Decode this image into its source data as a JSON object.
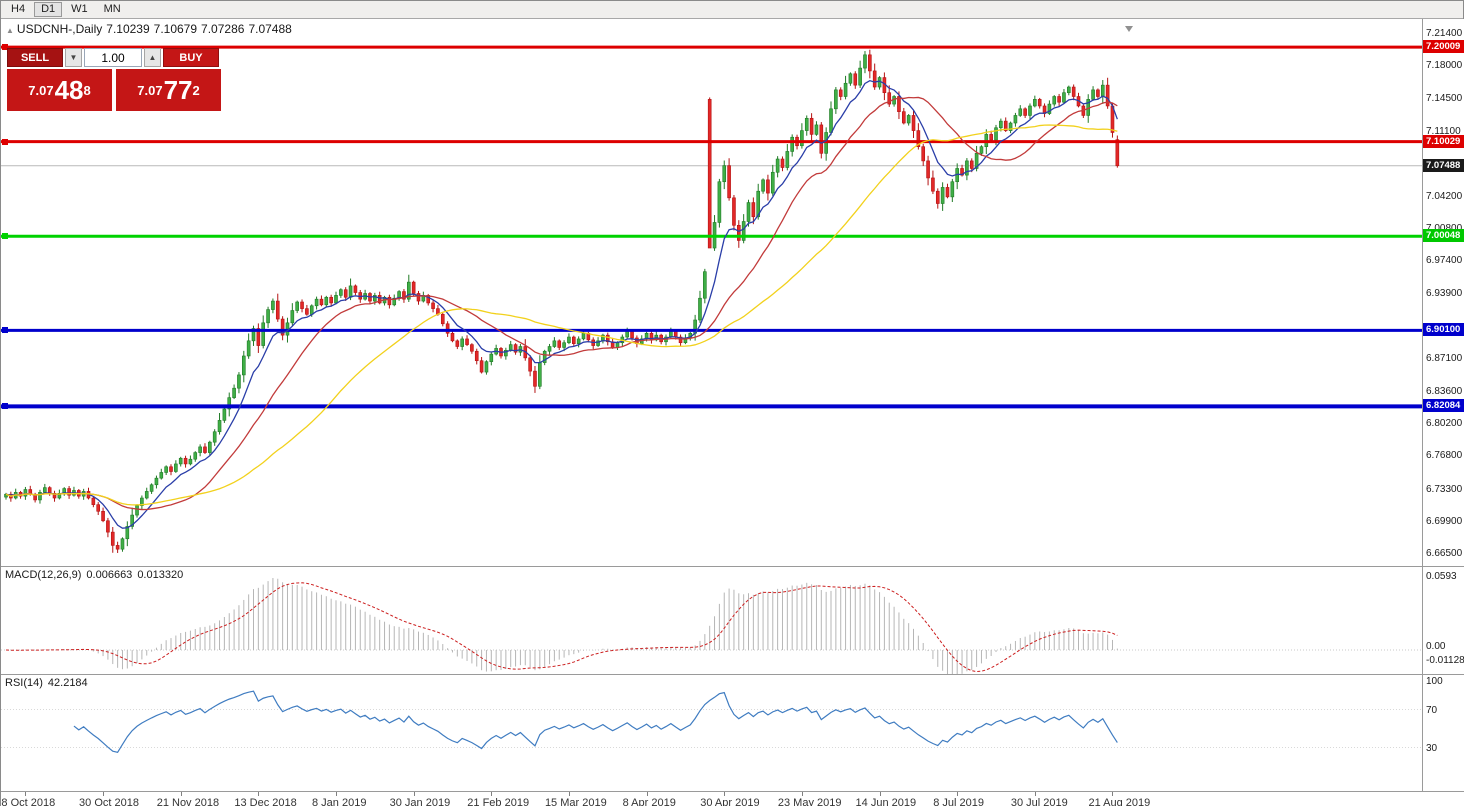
{
  "toolbar": {
    "timeframes": [
      "H4",
      "D1",
      "W1",
      "MN"
    ],
    "active": "D1"
  },
  "chart_title": {
    "symbol_period": "USDCNH-,Daily",
    "open": "7.10239",
    "high": "7.10679",
    "low": "7.07286",
    "close": "7.07488"
  },
  "trade_panel": {
    "sell_label": "SELL",
    "buy_label": "BUY",
    "volume": "1.00",
    "sell_price": {
      "main": "7.07",
      "big": "48",
      "sup": "8"
    },
    "buy_price": {
      "main": "7.07",
      "big": "77",
      "sup": "2"
    }
  },
  "chart_data": {
    "type": "candlestick",
    "symbol": "USDCNH",
    "period": "Daily",
    "quote": {
      "open": 7.10239,
      "high": 7.10679,
      "low": 7.07286,
      "close": 7.07488
    },
    "price_axis": {
      "min": 6.665,
      "max": 7.214
    },
    "price_axis_ticks": [
      "7.21400",
      "7.18000",
      "7.14500",
      "7.11100",
      "7.07700",
      "7.04200",
      "7.00800",
      "6.97400",
      "6.93900",
      "6.90500",
      "6.87100",
      "6.83600",
      "6.80200",
      "6.76800",
      "6.73300",
      "6.69900",
      "6.66500"
    ],
    "price_labels": [
      {
        "text": "7.20009",
        "price": 7.20009,
        "bg": "#dd0000"
      },
      {
        "text": "7.10029",
        "price": 7.10029,
        "bg": "#dd0000"
      },
      {
        "text": "7.07488",
        "price": 7.07488,
        "bg": "#1a1a1a"
      },
      {
        "text": "7.00048",
        "price": 7.00048,
        "bg": "#00c800"
      },
      {
        "text": "6.90100",
        "price": 6.901,
        "bg": "#0000cc"
      },
      {
        "text": "6.82084",
        "price": 6.82084,
        "bg": "#0000cc"
      }
    ],
    "hlines": [
      {
        "price": 7.20009,
        "color": "#dd0000",
        "width": 3
      },
      {
        "price": 7.10029,
        "color": "#dd0000",
        "width": 3
      },
      {
        "price": 7.00048,
        "color": "#00d200",
        "width": 3
      },
      {
        "price": 6.901,
        "color": "#0000cc",
        "width": 3
      },
      {
        "price": 6.82084,
        "color": "#0000cc",
        "width": 4
      }
    ],
    "bid_price": 7.07488,
    "candle_colors": {
      "bull_fill": "#3fae46",
      "bull_stroke": "#1f7a25",
      "bear_fill": "#e22828",
      "bear_stroke": "#b41212"
    },
    "moving_averages": [
      {
        "period": 8,
        "type": "ema",
        "color": "#2a3ea8"
      },
      {
        "period": 20,
        "type": "sma",
        "color": "#c23b3b"
      },
      {
        "period": 45,
        "type": "sma",
        "color": "#f2d11c"
      }
    ],
    "closes": [
      6.728,
      6.724,
      6.73,
      6.726,
      6.733,
      6.728,
      6.722,
      6.73,
      6.735,
      6.729,
      6.724,
      6.729,
      6.734,
      6.727,
      6.732,
      6.726,
      6.731,
      6.724,
      6.717,
      6.71,
      6.7,
      6.688,
      6.674,
      6.67,
      6.681,
      6.694,
      6.706,
      6.716,
      6.724,
      6.731,
      6.738,
      6.745,
      6.751,
      6.757,
      6.752,
      6.76,
      6.766,
      6.76,
      6.765,
      6.772,
      6.778,
      6.772,
      6.783,
      6.794,
      6.806,
      6.818,
      6.83,
      6.84,
      6.854,
      6.874,
      6.89,
      6.903,
      6.885,
      6.909,
      6.923,
      6.932,
      6.913,
      6.896,
      6.909,
      6.922,
      6.931,
      6.924,
      6.918,
      6.927,
      6.934,
      6.928,
      6.936,
      6.93,
      6.938,
      6.944,
      6.936,
      6.948,
      6.941,
      6.934,
      6.94,
      6.932,
      6.938,
      6.93,
      6.936,
      6.928,
      6.935,
      6.942,
      6.934,
      6.952,
      6.94,
      6.932,
      6.938,
      6.93,
      6.924,
      6.918,
      6.908,
      6.898,
      6.89,
      6.884,
      6.892,
      6.886,
      6.879,
      6.869,
      6.857,
      6.868,
      6.876,
      6.882,
      6.874,
      6.88,
      6.886,
      6.878,
      6.884,
      6.872,
      6.858,
      6.842,
      6.867,
      6.879,
      6.884,
      6.89,
      6.883,
      6.888,
      6.894,
      6.887,
      6.892,
      6.898,
      6.891,
      6.885,
      6.89,
      6.896,
      6.889,
      6.883,
      6.888,
      6.894,
      6.9,
      6.893,
      6.887,
      6.892,
      6.898,
      6.891,
      6.896,
      6.889,
      6.894,
      6.9,
      6.894,
      6.888,
      6.893,
      6.898,
      6.912,
      6.935,
      6.963,
      6.988,
      7.015,
      7.058,
      7.075,
      7.041,
      7.012,
      6.996,
      7.016,
      7.036,
      7.021,
      7.048,
      7.06,
      7.046,
      7.068,
      7.082,
      7.073,
      7.09,
      7.105,
      7.096,
      7.112,
      7.125,
      7.108,
      7.118,
      7.088,
      7.11,
      7.135,
      7.155,
      7.148,
      7.162,
      7.172,
      7.16,
      7.178,
      7.192,
      7.175,
      7.158,
      7.168,
      7.152,
      7.14,
      7.148,
      7.132,
      7.12,
      7.128,
      7.112,
      7.095,
      7.08,
      7.062,
      7.048,
      7.035,
      7.052,
      7.042,
      7.058,
      7.072,
      7.065,
      7.08,
      7.072,
      7.088,
      7.095,
      7.108,
      7.102,
      7.115,
      7.122,
      7.112,
      7.12,
      7.128,
      7.135,
      7.128,
      7.138,
      7.145,
      7.138,
      7.13,
      7.14,
      7.148,
      7.142,
      7.152,
      7.158,
      7.148,
      7.138,
      7.128,
      7.145,
      7.155,
      7.148,
      7.16,
      7.138,
      7.11,
      7.07488
    ],
    "candle_overrides": {
      "23": {
        "low": 6.666
      },
      "109": {
        "low": 6.835
      },
      "145": {
        "high": 7.147,
        "open": 7.145,
        "low": 7.044
      },
      "177": {
        "high": 7.196
      },
      "229": {
        "open": 7.10239,
        "high": 7.10679,
        "low": 7.07286
      }
    },
    "indicators": {
      "macd": {
        "name": "MACD(12,26,9)",
        "value1": "0.006663",
        "value2": "0.013320",
        "axis_ticks": [
          "0.0593",
          "0.00",
          "-0.011289"
        ],
        "histogram_color": "#b6b6b6",
        "signal_color": "#cc2020"
      },
      "rsi": {
        "name": "RSI(14)",
        "value": "42.2184",
        "axis_ticks": [
          "100",
          "70",
          "30"
        ],
        "line_color": "#3f7cc1"
      }
    },
    "time_labels": [
      "8 Oct 2018",
      "30 Oct 2018",
      "21 Nov 2018",
      "13 Dec 2018",
      "8 Jan 2019",
      "30 Jan 2019",
      "21 Feb 2019",
      "15 Mar 2019",
      "8 Apr 2019",
      "30 Apr 2019",
      "23 May 2019",
      "14 Jun 2019",
      "8 Jul 2019",
      "30 Jul 2019",
      "21 Aug 2019"
    ]
  }
}
